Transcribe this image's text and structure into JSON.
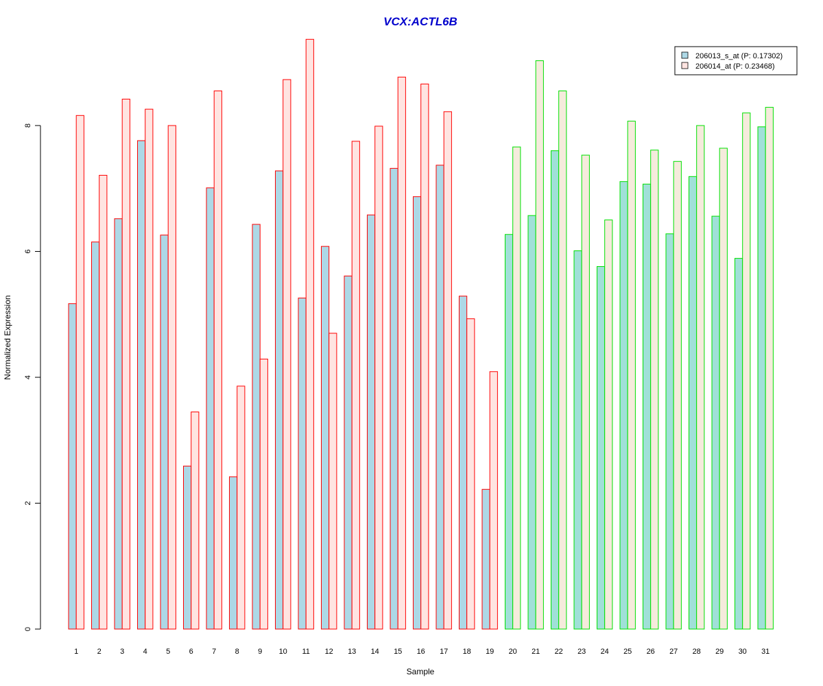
{
  "chart_data": {
    "type": "bar",
    "title": "VCX:ACTL6B",
    "xlabel": "Sample",
    "ylabel": "Normalized Expression",
    "ylim": [
      0,
      9.5
    ],
    "yticks": [
      0,
      2,
      4,
      6,
      8
    ],
    "categories": [
      "1",
      "2",
      "3",
      "4",
      "5",
      "6",
      "7",
      "8",
      "9",
      "10",
      "11",
      "12",
      "13",
      "14",
      "15",
      "16",
      "17",
      "18",
      "19",
      "20",
      "21",
      "22",
      "23",
      "24",
      "25",
      "26",
      "27",
      "28",
      "29",
      "30",
      "31"
    ],
    "series": [
      {
        "name": "206013_s_at (P: 0.17302)",
        "values": [
          5.17,
          6.15,
          6.52,
          7.76,
          6.26,
          2.59,
          7.01,
          2.42,
          6.43,
          7.28,
          5.26,
          6.08,
          5.61,
          6.58,
          7.32,
          6.87,
          7.37,
          5.29,
          2.22,
          6.27,
          6.57,
          7.6,
          6.01,
          5.76,
          7.11,
          7.07,
          6.28,
          7.19,
          6.56,
          5.89,
          7.98
        ]
      },
      {
        "name": "206014_at (P: 0.23468)",
        "values": [
          8.16,
          7.21,
          8.42,
          8.26,
          8.0,
          3.45,
          8.55,
          3.86,
          4.29,
          8.73,
          9.37,
          4.7,
          7.75,
          7.99,
          8.77,
          8.66,
          8.22,
          4.93,
          4.09,
          7.66,
          9.03,
          8.55,
          7.53,
          6.5,
          8.07,
          7.61,
          7.43,
          8.0,
          7.64,
          8.2,
          8.29
        ]
      }
    ],
    "group_split_after_index": 18,
    "legend_position": "top-right",
    "grid": false
  },
  "colors": {
    "title": "#0000cc",
    "series1_fill_group1": "#add8e6",
    "series2_fill_group1": "#ffe4e1",
    "border_group1": "#ff0000",
    "series1_fill_group2": "#a0e0d8",
    "series2_fill_group2": "#f5ebdc",
    "border_group2": "#00e000",
    "axis": "#000000"
  }
}
